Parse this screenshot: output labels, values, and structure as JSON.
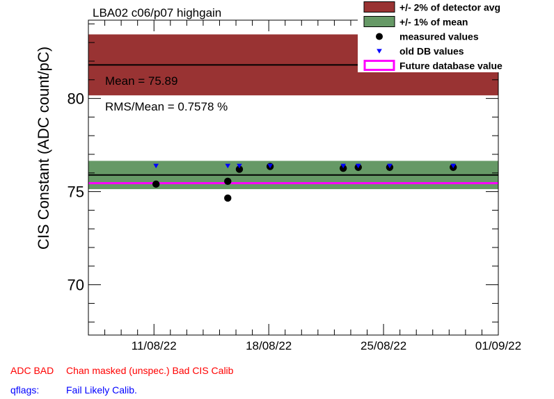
{
  "chart_data": {
    "type": "scatter",
    "title": "LBA02 c06/p07 highgain",
    "ylabel": "CIS Constant (ADC count/pC)",
    "xlabel": "",
    "ylim": [
      67.3,
      84.2
    ],
    "xlim": [
      "2022-08-07",
      "2022-09-01"
    ],
    "x_ticks": [
      "11/08/22",
      "18/08/22",
      "25/08/22",
      "01/09/22"
    ],
    "y_ticks": [
      "70",
      "75",
      "80"
    ],
    "detector_avg": 81.8,
    "detector_band_pct": 2,
    "mean": 75.89,
    "mean_band_pct": 1,
    "future_db_value": 75.45,
    "stats": {
      "mean_text": "Mean = 75.89",
      "rms_text": "RMS/Mean = 0.7578 %"
    },
    "series": [
      {
        "name": "measured values",
        "x": [
          "2022-08-11 03:00",
          "2022-08-15 12:00",
          "2022-08-15 12:00",
          "2022-08-16 05:00",
          "2022-08-18 02:00",
          "2022-08-22 13:00",
          "2022-08-23 11:00",
          "2022-08-25 09:00",
          "2022-08-29 06:00"
        ],
        "y": [
          75.4,
          75.55,
          74.65,
          76.2,
          76.35,
          76.25,
          76.3,
          76.3,
          76.3
        ]
      },
      {
        "name": "old DB values",
        "x": [
          "2022-08-11 03:00",
          "2022-08-15 12:00",
          "2022-08-16 05:00",
          "2022-08-18 02:00",
          "2022-08-22 13:00",
          "2022-08-23 11:00",
          "2022-08-25 09:00",
          "2022-08-29 06:00"
        ],
        "y": [
          76.38,
          76.38,
          76.38,
          76.38,
          76.38,
          76.38,
          76.38,
          76.38
        ]
      }
    ],
    "legend": {
      "placement": "top-right",
      "entries": [
        {
          "label": "+/- 2% of detector avg",
          "color": "#993333",
          "kind": "box"
        },
        {
          "label": "+/- 1% of mean",
          "color": "#669966",
          "kind": "box"
        },
        {
          "label": "measured values",
          "color": "#000000",
          "kind": "circle"
        },
        {
          "label": "old DB values",
          "color": "#0000ff",
          "kind": "triangle"
        },
        {
          "label": "Future database value",
          "color": "#ff00ff",
          "kind": "outline"
        }
      ]
    },
    "colors": {
      "detector_band": "#993333",
      "mean_band": "#669966",
      "measured": "#000000",
      "old_db": "#0000ff",
      "future_db": "#ff00ff"
    }
  },
  "footer": {
    "adc_label": "ADC BAD",
    "adc_flags": "Chan masked (unspec.) Bad CIS Calib",
    "qflags_label": "qflags:",
    "qflags_flags": "Fail Likely Calib.",
    "flag_color": "#ff0000",
    "qflag_color": "#0000ff"
  }
}
